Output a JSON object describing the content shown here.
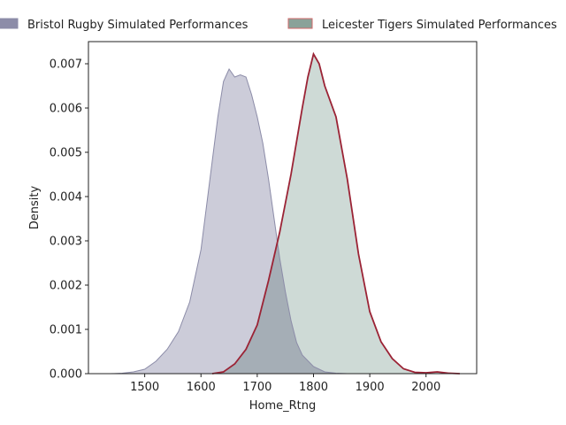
{
  "chart_data": {
    "type": "area",
    "title": "",
    "xlabel": "Home_Rtng",
    "ylabel": "Density",
    "xlim": [
      1400,
      2090
    ],
    "ylim": [
      0,
      0.0075
    ],
    "x_ticks": [
      1500,
      1600,
      1700,
      1800,
      1900,
      2000
    ],
    "y_ticks": [
      0.0,
      0.001,
      0.002,
      0.003,
      0.004,
      0.005,
      0.006,
      0.007
    ],
    "y_tick_labels": [
      "0.000",
      "0.001",
      "0.002",
      "0.003",
      "0.004",
      "0.005",
      "0.006",
      "0.007"
    ],
    "grid": false,
    "legend_position": "top",
    "series": [
      {
        "name": "Bristol Rugby Simulated Performances",
        "fill": "#bfbfcf",
        "line": "#8c8ca8",
        "legend_swatch": "#8c8ca8",
        "x": [
          1440,
          1460,
          1480,
          1500,
          1520,
          1540,
          1560,
          1580,
          1600,
          1610,
          1620,
          1630,
          1640,
          1650,
          1660,
          1670,
          1680,
          1690,
          1700,
          1710,
          1720,
          1730,
          1740,
          1750,
          1760,
          1770,
          1780,
          1800,
          1820,
          1840,
          1860
        ],
        "y": [
          0.0,
          1e-05,
          4e-05,
          0.0001,
          0.00028,
          0.00055,
          0.00095,
          0.00162,
          0.0028,
          0.0038,
          0.0048,
          0.0058,
          0.0066,
          0.00688,
          0.0067,
          0.00675,
          0.0067,
          0.0063,
          0.0058,
          0.0052,
          0.0044,
          0.0035,
          0.0026,
          0.00185,
          0.0012,
          0.0007,
          0.00042,
          0.00016,
          4e-05,
          1e-05,
          0.0
        ]
      },
      {
        "name": "Leicester Tigers Simulated Performances",
        "fill": "#c2d1cc",
        "line": "#9b2335",
        "legend_swatch": "#8aa299",
        "x": [
          1620,
          1640,
          1660,
          1680,
          1700,
          1720,
          1740,
          1760,
          1780,
          1790,
          1800,
          1810,
          1820,
          1840,
          1860,
          1880,
          1900,
          1920,
          1940,
          1960,
          1980,
          2000,
          2020,
          2040,
          2060
        ],
        "y": [
          0.0,
          4e-05,
          0.00022,
          0.00055,
          0.0011,
          0.0021,
          0.0032,
          0.0045,
          0.006,
          0.0067,
          0.00722,
          0.007,
          0.0065,
          0.0058,
          0.0044,
          0.0027,
          0.0014,
          0.00072,
          0.00034,
          0.00011,
          3e-05,
          2e-05,
          4e-05,
          1e-05,
          0.0
        ]
      }
    ]
  }
}
